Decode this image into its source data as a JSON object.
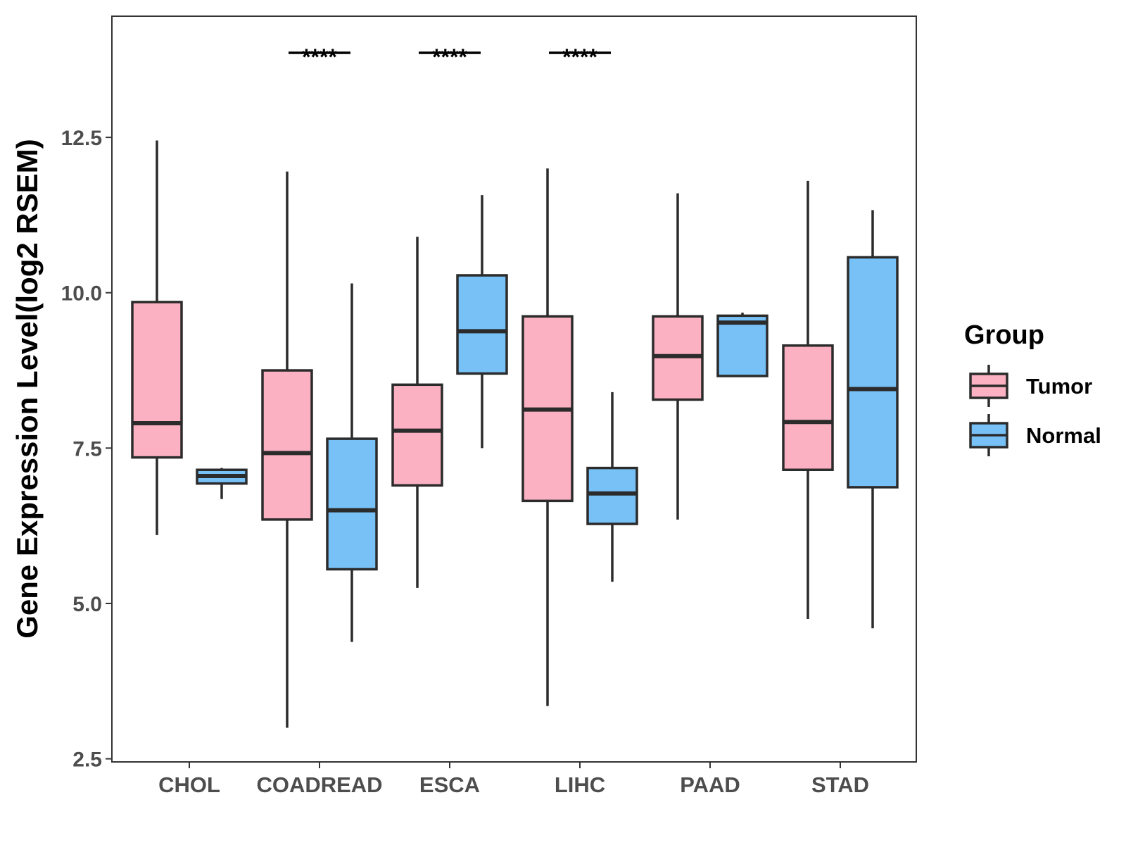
{
  "chart_data": {
    "type": "boxplot",
    "title": "",
    "xlabel": "",
    "ylabel": "Gene Expression Level(log2 RSEM)",
    "ylim": [
      2.45,
      14.45
    ],
    "yticks": [
      2.5,
      5.0,
      7.5,
      10.0,
      12.5
    ],
    "ytick_labels": [
      "2.5",
      "5.0",
      "7.5",
      "10.0",
      "12.5"
    ],
    "categories": [
      "CHOL",
      "COADREAD",
      "ESCA",
      "LIHC",
      "PAAD",
      "STAD"
    ],
    "legend": {
      "title": "Group",
      "position": "right",
      "entries": [
        {
          "name": "Tumor",
          "color": "#FBB1C2"
        },
        {
          "name": "Normal",
          "color": "#77C1F7"
        }
      ]
    },
    "series": [
      {
        "name": "Tumor",
        "color": "#FBB1C2",
        "boxes": [
          {
            "whisker_low": 6.1,
            "q1": 7.35,
            "median": 7.9,
            "q3": 9.85,
            "whisker_high": 12.45
          },
          {
            "whisker_low": 3.0,
            "q1": 6.35,
            "median": 7.42,
            "q3": 8.75,
            "whisker_high": 11.95
          },
          {
            "whisker_low": 5.25,
            "q1": 6.9,
            "median": 7.78,
            "q3": 8.52,
            "whisker_high": 10.9
          },
          {
            "whisker_low": 3.35,
            "q1": 6.65,
            "median": 8.12,
            "q3": 9.62,
            "whisker_high": 12.0
          },
          {
            "whisker_low": 6.35,
            "q1": 8.28,
            "median": 8.98,
            "q3": 9.62,
            "whisker_high": 11.6
          },
          {
            "whisker_low": 4.75,
            "q1": 7.15,
            "median": 7.92,
            "q3": 9.15,
            "whisker_high": 11.8
          }
        ]
      },
      {
        "name": "Normal",
        "color": "#77C1F7",
        "boxes": [
          {
            "whisker_low": 6.68,
            "q1": 6.93,
            "median": 7.05,
            "q3": 7.15,
            "whisker_high": 7.18
          },
          {
            "whisker_low": 4.38,
            "q1": 5.55,
            "median": 6.5,
            "q3": 7.65,
            "whisker_high": 10.15
          },
          {
            "whisker_low": 7.5,
            "q1": 8.7,
            "median": 9.38,
            "q3": 10.28,
            "whisker_high": 11.57
          },
          {
            "whisker_low": 5.35,
            "q1": 6.28,
            "median": 6.77,
            "q3": 7.18,
            "whisker_high": 8.4
          },
          {
            "whisker_low": 8.66,
            "q1": 8.66,
            "median": 9.52,
            "q3": 9.63,
            "whisker_high": 9.68
          },
          {
            "whisker_low": 4.6,
            "q1": 6.87,
            "median": 8.45,
            "q3": 10.57,
            "whisker_high": 11.33
          }
        ]
      }
    ],
    "annotations": [
      {
        "category": "COADREAD",
        "label": "****"
      },
      {
        "category": "ESCA",
        "label": "****"
      },
      {
        "category": "LIHC",
        "label": "****"
      }
    ]
  }
}
